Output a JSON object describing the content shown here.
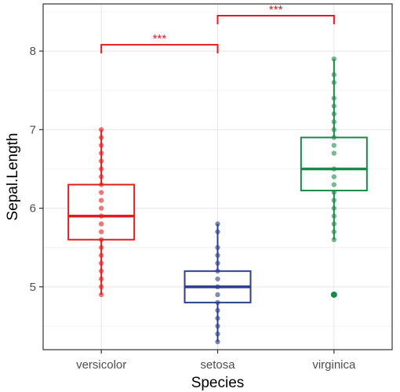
{
  "chart_data": {
    "type": "box",
    "xlabel": "Species",
    "ylabel": "Sepal.Length",
    "categories": [
      "versicolor",
      "setosa",
      "virginica"
    ],
    "y_ticks": [
      5,
      6,
      7,
      8
    ],
    "ylim": [
      4.2,
      8.6
    ],
    "grid": "on",
    "legend": "none",
    "colors": {
      "versicolor": "#e41a1c",
      "setosa": "#2c3e8c",
      "virginica": "#1a8a4a"
    },
    "boxes": [
      {
        "category": "versicolor",
        "q1": 5.6,
        "median": 5.9,
        "q3": 6.3,
        "min": 4.9,
        "max": 7.0,
        "points": [
          4.9,
          5.0,
          5.1,
          5.2,
          5.3,
          5.4,
          5.5,
          5.6,
          5.7,
          5.8,
          5.9,
          6.0,
          6.1,
          6.2,
          6.3,
          6.4,
          6.5,
          6.6,
          6.7,
          6.8,
          6.9,
          7.0
        ]
      },
      {
        "category": "setosa",
        "q1": 4.8,
        "median": 5.0,
        "q3": 5.2,
        "min": 4.3,
        "max": 5.8,
        "points": [
          4.3,
          4.4,
          4.5,
          4.6,
          4.7,
          4.8,
          4.9,
          5.0,
          5.1,
          5.2,
          5.3,
          5.4,
          5.5,
          5.7,
          5.8
        ]
      },
      {
        "category": "virginica",
        "q1": 6.225,
        "median": 6.5,
        "q3": 6.9,
        "min": 5.6,
        "max": 7.9,
        "points": [
          4.9,
          5.6,
          5.7,
          5.8,
          5.9,
          6.0,
          6.1,
          6.2,
          6.3,
          6.4,
          6.5,
          6.7,
          6.8,
          6.9,
          7.0,
          7.1,
          7.2,
          7.3,
          7.4,
          7.6,
          7.7,
          7.9
        ],
        "outliers": [
          4.9
        ]
      }
    ],
    "annotations": [
      {
        "from": "versicolor",
        "to": "setosa",
        "y": 8.08,
        "label": "***",
        "color": "#e41a1c"
      },
      {
        "from": "setosa",
        "to": "virginica",
        "y": 8.45,
        "label": "***",
        "color": "#e41a1c"
      }
    ]
  }
}
